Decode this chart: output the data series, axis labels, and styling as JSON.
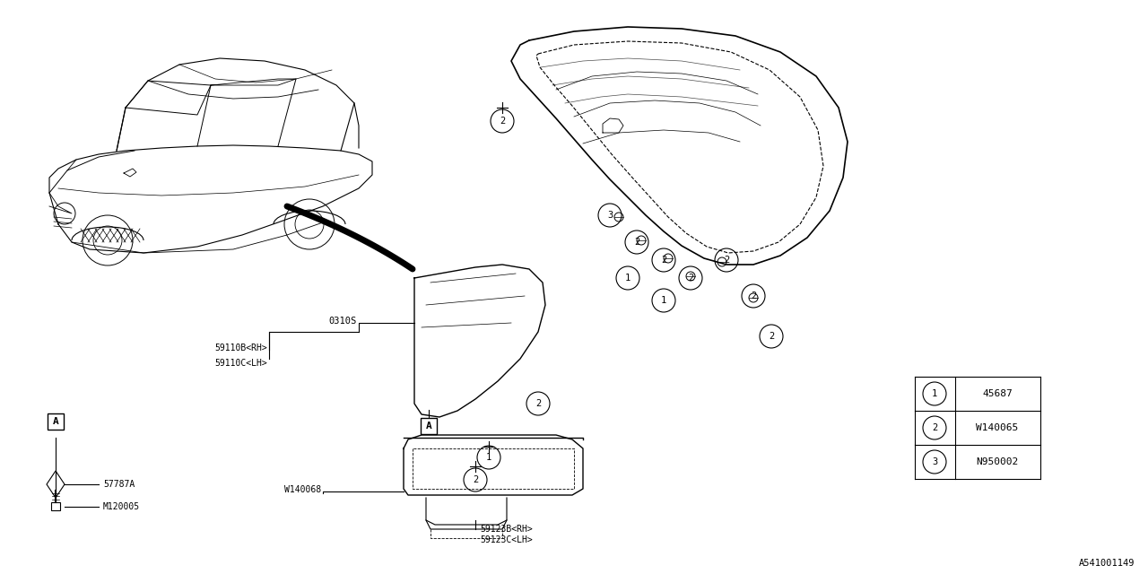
{
  "bg_color": "#ffffff",
  "line_color": "#000000",
  "font_color": "#000000",
  "diagram_id": "A541001149",
  "parts_table": [
    {
      "num": 1,
      "code": "45687"
    },
    {
      "num": 2,
      "code": "W140065"
    },
    {
      "num": 3,
      "code": "N950002"
    }
  ]
}
